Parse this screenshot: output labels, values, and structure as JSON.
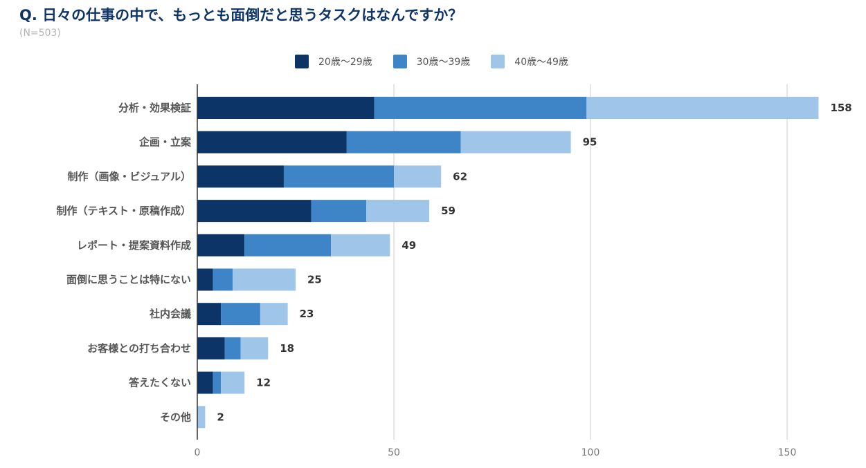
{
  "title": "Q. 日々の仕事の中で、もっとも面倒だと思うタスクはなんですか？",
  "subtitle": "(N=503)",
  "chart_data": {
    "type": "bar",
    "orientation": "horizontal",
    "stacked": true,
    "categories": [
      "分析・効果検証",
      "企画・立案",
      "制作（画像・ビジュアル）",
      "制作（テキスト・原稿作成）",
      "レポート・提案資料作成",
      "面倒に思うことは特にない",
      "社内会議",
      "お客様との打ち合わせ",
      "答えたくない",
      "その他"
    ],
    "series": [
      {
        "name": "20歳〜29歳",
        "color": "#0d3466",
        "values": [
          45,
          38,
          22,
          29,
          12,
          4,
          6,
          7,
          4,
          0
        ]
      },
      {
        "name": "30歳〜39歳",
        "color": "#3d85c6",
        "values": [
          54,
          29,
          28,
          14,
          22,
          5,
          10,
          4,
          2,
          0
        ]
      },
      {
        "name": "40歳〜49歳",
        "color": "#9fc5e8",
        "values": [
          59,
          28,
          12,
          16,
          15,
          16,
          7,
          7,
          6,
          2
        ]
      }
    ],
    "totals": [
      158,
      95,
      62,
      59,
      49,
      25,
      23,
      18,
      12,
      2
    ],
    "xlim": [
      0,
      160
    ],
    "xticks": [
      0,
      50,
      100,
      150
    ],
    "grid": true,
    "legend_position": "top"
  }
}
